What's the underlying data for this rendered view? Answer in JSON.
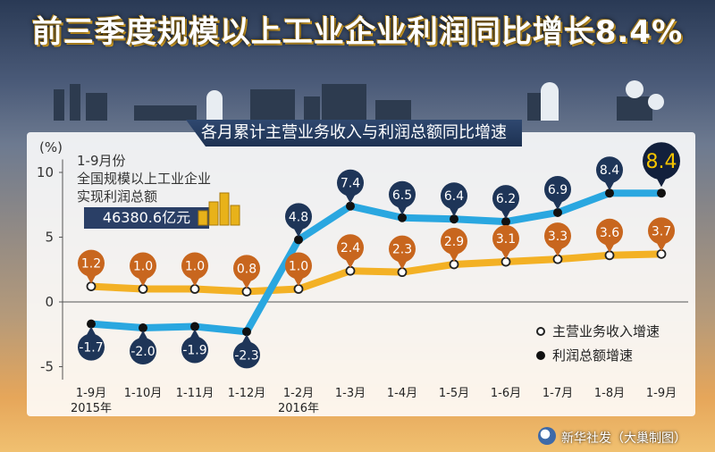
{
  "header": {
    "title": "前三季度规模以上工业企业利润同比增长8.4%"
  },
  "subtitle": "各月累计主营业务收入与利润总额同比增速",
  "info_box": {
    "line1": "1-9月份",
    "line2": "全国规模以上工业企业",
    "line3": "实现利润总额",
    "total": "46380.6亿元"
  },
  "legend": {
    "revenue": "主营业务收入增速",
    "profit": "利润总额增速"
  },
  "source": "新华社发（大巢制图）",
  "colors": {
    "profit_line": "#2aa7e0",
    "revenue_line": "#f3b125",
    "profit_marker": "#1e3558",
    "revenue_marker": "#c8661e",
    "highlight_marker": "#12203c",
    "highlight_text": "#f5c400"
  },
  "chart_data": {
    "type": "line",
    "title": "各月累计主营业务收入与利润总额同比增速",
    "ylabel": "(%)",
    "ylim": [
      -6,
      11
    ],
    "yticks": [
      -5,
      0,
      5,
      10
    ],
    "categories": [
      "1-9月",
      "1-10月",
      "1-11月",
      "1-12月",
      "1-2月",
      "1-3月",
      "1-4月",
      "1-5月",
      "1-6月",
      "1-7月",
      "1-8月",
      "1-9月"
    ],
    "year_labels": [
      {
        "category_index": 0,
        "label": "2015年"
      },
      {
        "category_index": 4,
        "label": "2016年"
      }
    ],
    "series": [
      {
        "name": "利润总额增速",
        "values": [
          -1.7,
          -2.0,
          -1.9,
          -2.3,
          4.8,
          7.4,
          6.5,
          6.4,
          6.2,
          6.9,
          8.4,
          8.4
        ]
      },
      {
        "name": "主营业务收入增速",
        "values": [
          1.2,
          1.0,
          1.0,
          0.8,
          1.0,
          2.4,
          2.3,
          2.9,
          3.1,
          3.3,
          3.6,
          3.7
        ]
      }
    ],
    "data_labels": {
      "profit": [
        "-1.7",
        "-2.0",
        "-1.9",
        "-2.3",
        "4.8",
        "7.4",
        "6.5",
        "6.4",
        "6.2",
        "6.9",
        "8.4",
        "8.4"
      ],
      "revenue": [
        "1.2",
        "1.0",
        "1.0",
        "0.8",
        "1.0",
        "2.4",
        "2.3",
        "2.9",
        "3.1",
        "3.3",
        "3.6",
        "3.7"
      ]
    },
    "grid": false,
    "legend_position": "bottom-right"
  }
}
